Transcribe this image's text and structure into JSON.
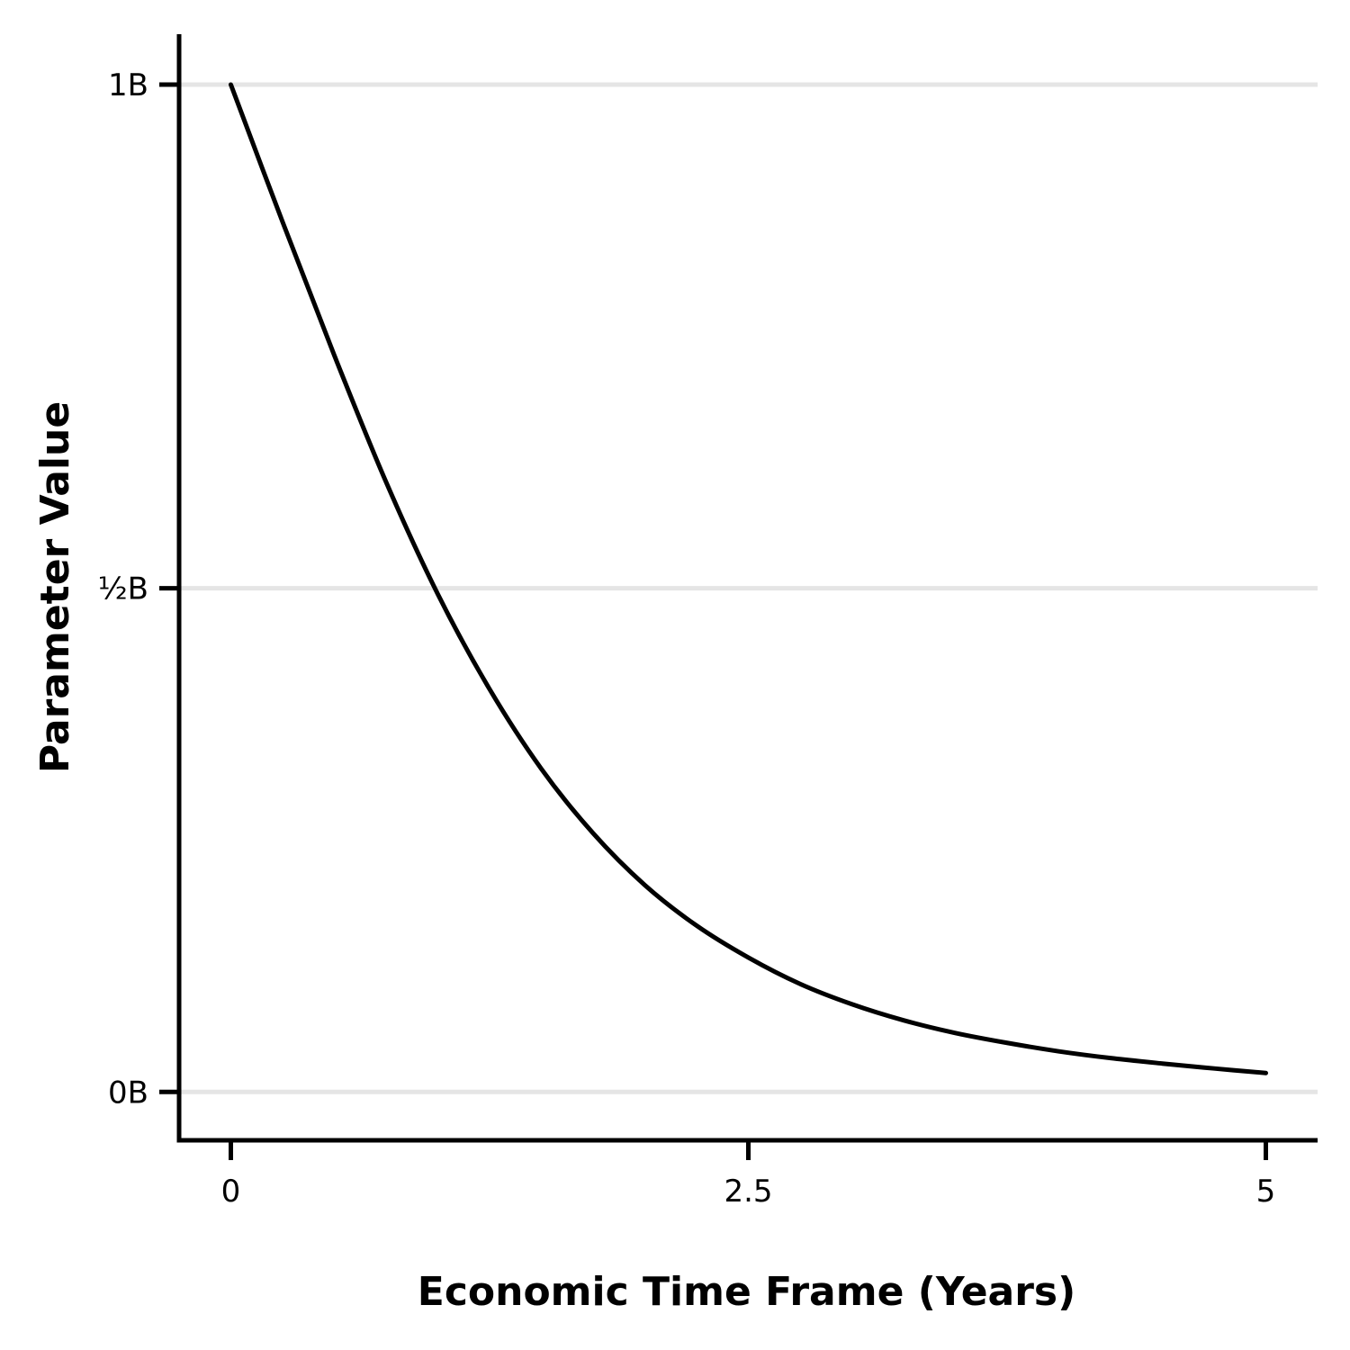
{
  "chart_data": {
    "type": "line",
    "title": "",
    "xlabel": "Economic Time Frame (Years)",
    "ylabel": "Parameter Value",
    "xlim": [
      -0.25,
      5.25
    ],
    "ylim": [
      -0.048,
      1.05
    ],
    "x_ticks": [
      {
        "value": 0,
        "label": "0"
      },
      {
        "value": 2.5,
        "label": "2.5"
      },
      {
        "value": 5,
        "label": "5"
      }
    ],
    "y_ticks": [
      {
        "value": 0,
        "label": "0B"
      },
      {
        "value": 0.5,
        "label": "½B"
      },
      {
        "value": 1,
        "label": "1B"
      }
    ],
    "grid": "horizontal",
    "series": [
      {
        "x": [
          0,
          0.25,
          0.5,
          0.75,
          1,
          1.25,
          1.5,
          1.75,
          2,
          2.25,
          2.5,
          2.75,
          3,
          3.25,
          3.5,
          3.75,
          4,
          4.25,
          4.5,
          4.75,
          5
        ],
        "y": [
          1.0,
          0.8636,
          0.7311,
          0.6054,
          0.4941,
          0.3998,
          0.3207,
          0.2568,
          0.2053,
          0.1651,
          0.1334,
          0.1072,
          0.0871,
          0.0711,
          0.0585,
          0.0487,
          0.0403,
          0.0336,
          0.0282,
          0.0233,
          0.0188
        ],
        "color": "#000000"
      }
    ]
  }
}
